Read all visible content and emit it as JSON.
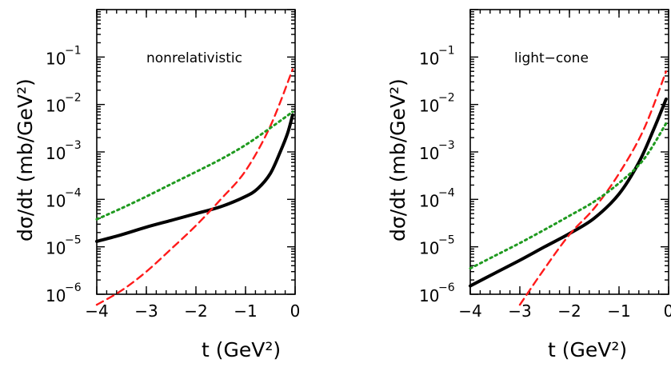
{
  "chart_data": [
    {
      "type": "line",
      "annotation": "nonrelativistic",
      "xlabel": "t (GeV²)",
      "ylabel": "dσ/dt  (mb/GeV²)",
      "xlim": [
        -4,
        0
      ],
      "ylim": [
        1e-06,
        1
      ],
      "yscale": "log",
      "x_ticks": [
        "−4",
        "−3",
        "−2",
        "−1",
        "0"
      ],
      "y_ticks": [
        "10",
        "10",
        "10",
        "10",
        "10",
        "10"
      ],
      "y_tick_exponents": [
        "−6",
        "−5",
        "−4",
        "−3",
        "−2",
        "−1"
      ],
      "series": [
        {
          "style": "solid",
          "color": "#000000",
          "x": [
            -4,
            -3.5,
            -3,
            -2.5,
            -2,
            -1.5,
            -1,
            -0.75,
            -0.5,
            -0.3,
            -0.15,
            -0.05
          ],
          "y": [
            1.3e-05,
            1.8e-05,
            2.6e-05,
            3.6e-05,
            5e-05,
            7e-05,
            0.000115,
            0.00017,
            0.00035,
            0.001,
            0.0025,
            0.006
          ]
        },
        {
          "style": "dashed",
          "color": "#ff1a1a",
          "x": [
            -4,
            -3.5,
            -3,
            -2.5,
            -2,
            -1.5,
            -1,
            -0.5,
            -0.05
          ],
          "y": [
            6e-07,
            1.2e-06,
            3e-06,
            9e-06,
            2.8e-05,
            0.0001,
            0.0004,
            0.0035,
            0.055
          ]
        },
        {
          "style": "dotted",
          "color": "#1f9a1f",
          "x": [
            -4,
            -3.5,
            -3,
            -2.5,
            -2,
            -1.5,
            -1,
            -0.5,
            -0.05
          ],
          "y": [
            3.8e-05,
            6.5e-05,
            0.000115,
            0.00021,
            0.00038,
            0.0007,
            0.0014,
            0.0032,
            0.007
          ]
        }
      ]
    },
    {
      "type": "line",
      "annotation": "light−cone",
      "xlabel": "t (GeV²)",
      "ylabel": "dσ/dt  (mb/GeV²)",
      "xlim": [
        -4,
        0
      ],
      "ylim": [
        1e-06,
        1
      ],
      "yscale": "log",
      "x_ticks": [
        "−4",
        "−3",
        "−2",
        "−1",
        "0"
      ],
      "y_ticks": [
        "10",
        "10",
        "10",
        "10",
        "10",
        "10"
      ],
      "y_tick_exponents": [
        "−6",
        "−5",
        "−4",
        "−3",
        "−2",
        "−1"
      ],
      "series": [
        {
          "style": "solid",
          "color": "#000000",
          "x": [
            -4,
            -3.5,
            -3,
            -2.5,
            -2,
            -1.5,
            -1,
            -0.6,
            -0.3,
            -0.05
          ],
          "y": [
            1.5e-06,
            2.8e-06,
            5.2e-06,
            1e-05,
            1.9e-05,
            4e-05,
            0.00013,
            0.0006,
            0.003,
            0.013
          ]
        },
        {
          "style": "dashed",
          "color": "#ff1a1a",
          "x": [
            -3,
            -2.5,
            -2,
            -1.5,
            -1,
            -0.5,
            -0.05
          ],
          "y": [
            6e-07,
            3.5e-06,
            1.8e-05,
            6.5e-05,
            0.00035,
            0.003,
            0.05
          ]
        },
        {
          "style": "dotted",
          "color": "#1f9a1f",
          "x": [
            -4,
            -3.5,
            -3,
            -2.5,
            -2,
            -1.5,
            -1,
            -0.5,
            -0.05
          ],
          "y": [
            3.5e-06,
            6.5e-06,
            1.2e-05,
            2.3e-05,
            4.5e-05,
            9e-05,
            0.00022,
            0.0007,
            0.004
          ]
        }
      ]
    }
  ]
}
